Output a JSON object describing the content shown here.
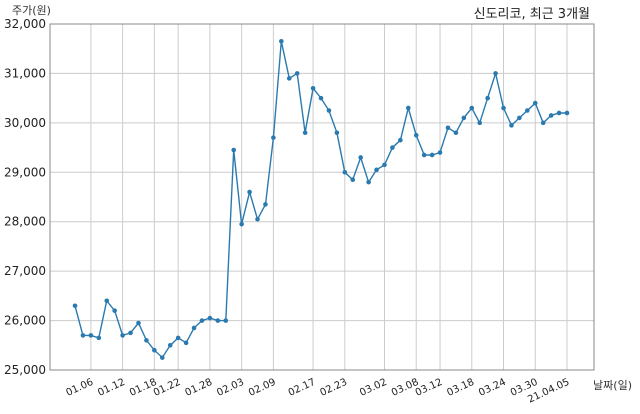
{
  "chart_data": {
    "type": "line",
    "title": "신도리코, 최근 3개월",
    "xlabel": "날짜(일)",
    "ylabel": "주가(원)",
    "ylim": [
      25000,
      32000
    ],
    "yticks": [
      25000,
      26000,
      27000,
      28000,
      29000,
      30000,
      31000,
      32000
    ],
    "ytick_labels": [
      "25,000",
      "26,000",
      "27,000",
      "28,000",
      "29,000",
      "30,000",
      "31,000",
      "32,000"
    ],
    "xtick_labels": [
      "01.06",
      "01.12",
      "01.18",
      "01.22",
      "01.28",
      "02.03",
      "02.09",
      "02.17",
      "02.23",
      "03.02",
      "03.08",
      "03.12",
      "03.18",
      "03.24",
      "03.30",
      "21.04.05"
    ],
    "xtick_index": [
      2,
      6,
      10,
      13,
      17,
      21,
      25,
      30,
      34,
      39,
      43,
      46,
      50,
      54,
      58,
      62
    ],
    "grid": true,
    "color": "#2a7ab0",
    "series": [
      {
        "values": [
          26300,
          25700,
          25700,
          25650,
          26400,
          26200,
          25700,
          25750,
          25950,
          25600,
          25400,
          25250,
          25500,
          25650,
          25550,
          25850,
          26000,
          26050,
          26000,
          26000,
          29450,
          27950,
          28600,
          28050,
          28350,
          29700,
          31650,
          30900,
          31000,
          29800,
          30700,
          30500,
          30250,
          29800,
          29000,
          28850,
          29300,
          28800,
          29050,
          29150,
          29500,
          29650,
          30300,
          29750,
          29350,
          29350,
          29400,
          29900,
          29800,
          30100,
          30300,
          30000,
          30500,
          31000,
          30300,
          29950,
          30100,
          30250,
          30400,
          30000,
          30150,
          30200,
          30200
        ]
      }
    ]
  }
}
